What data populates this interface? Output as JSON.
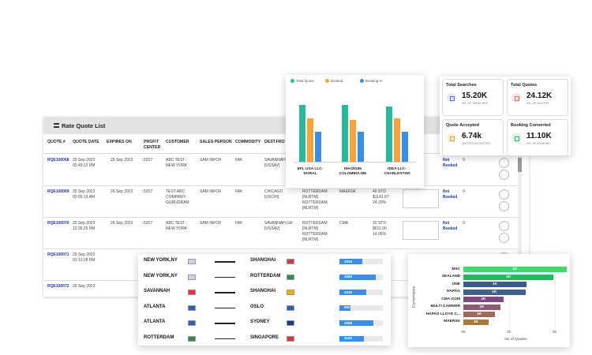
{
  "table": {
    "title": "Rate Quote List",
    "columns": [
      "QUOTE #",
      "QUOTE DATE",
      "EXPIRES ON",
      "PROFIT CENTER",
      "CUSTOMER",
      "SALES PERSON",
      "COMMODITY",
      "DEST.FRO"
    ],
    "rows": [
      {
        "quote": "RQE100068",
        "date": [
          "25 Sep 2023",
          "02:49:12 PM"
        ],
        "expires": "25 Sep 2023",
        "profit": "5207",
        "customer": [
          "ABC TEST-",
          "NEW YORK"
        ],
        "sales": "SAM INFOX",
        "commodity": "FAK",
        "dest": [
          "SAVANNAH,GA",
          "[USSAV]"
        ],
        "status": [
          "Not",
          "Booked"
        ],
        "count": "0"
      },
      {
        "quote": "RQE100069",
        "date": [
          "25 Sep 2023",
          "02:55:19 AM"
        ],
        "expires": "26 Sep 2023",
        "profit": "5207",
        "customer": [
          "TEST ABC",
          "COMPANY-",
          "GURUGRAM"
        ],
        "sales": "SAM INFOX",
        "commodity": "FAK",
        "dest": [
          "CHICAGO",
          "[USCHI]"
        ],
        "origin": [
          "ROTTERDAM",
          "[NLRTM]",
          "ROTTERDAM",
          "[NLRTM]"
        ],
        "carrier": "MAERSK",
        "rate": [
          "40 STD",
          "$1141.97",
          "24.20%"
        ],
        "status": [
          "Not",
          "Booked"
        ],
        "count": "0"
      },
      {
        "quote": "RQE100070",
        "date": [
          "25 Sep 2023",
          "12:36:25 PM"
        ],
        "expires": "26 Sep 2023",
        "profit": "5207",
        "customer": [
          "ABC TEST-",
          "NEW YORK"
        ],
        "sales": "SAM INFOX",
        "commodity": "FAK",
        "dest": [
          "SAVANNAH,GA",
          "[USSAV]"
        ],
        "origin": [
          "ROTTERDAM",
          "[NLRTM]",
          "ROTTERDAM",
          "[NLRTM]"
        ],
        "carrier": "CMA",
        "rate": [
          "20 STD",
          "$611.00",
          "14.06%"
        ],
        "status": [
          "Not",
          "Booked"
        ],
        "count": "0"
      },
      {
        "quote": "RQE100071",
        "date": [
          "25 Sep 2023",
          "01:13:28 PM"
        ]
      },
      {
        "quote": "RQE100072",
        "date": [
          "25 Sep 2023"
        ]
      }
    ]
  },
  "stats": [
    {
      "title": "Total Searches",
      "value": "15.20K",
      "subtitle": "NO. OF SEARCHES"
    },
    {
      "title": "Total Quotes",
      "value": "24.12K",
      "subtitle": "NO. OF QUOTES"
    },
    {
      "title": "Quote Accepted",
      "value": "6.74k",
      "subtitle": "QUOTES ACCEPTED"
    },
    {
      "title": "Booking Converted",
      "value": "11.10K",
      "subtitle": "NO. OF BOOKING"
    }
  ],
  "routes": {
    "xlim": [
      0,
      2000
    ],
    "rows": [
      {
        "from": "NEW YORK,NY",
        "to": "SHANGHAI",
        "value": 1054
      },
      {
        "from": "NEW YORK,NY",
        "to": "ROTTERDAM",
        "value": 1663
      },
      {
        "from": "SAVANNAH",
        "to": "SHANGHAI",
        "value": 1240
      },
      {
        "from": "ATLANTA",
        "to": "OSLO",
        "value": 500
      },
      {
        "from": "ATLANTA",
        "to": "SYDNEY",
        "value": 1560
      },
      {
        "from": "ROTTERDAM",
        "to": "SINGAPORE",
        "value": 1120
      }
    ]
  },
  "chart_data": [
    {
      "type": "bar",
      "categories": [
        "EFL USA LLC-DORAL",
        "MAGNUM COLOMBIA-ME",
        "IDEA LLC-CHARLESTON"
      ],
      "series": [
        {
          "name": "Total Quote",
          "color": "#2bb79b",
          "values": [
            72,
            72,
            70
          ]
        },
        {
          "name": "Booked",
          "color": "#f7a23b",
          "values": [
            55,
            53,
            55
          ]
        },
        {
          "name": "Booking %",
          "color": "#3b8ee8",
          "values": [
            38,
            38,
            38
          ]
        }
      ],
      "ylim": [
        0,
        80
      ]
    },
    {
      "type": "barh",
      "xlabel": "No of Quotes",
      "ylabel": "CarrierName",
      "categories": [
        "MSC",
        "SEALAND",
        "ONE",
        "HAPAG",
        "CMA-CGM",
        "MULTI CARRIER",
        "HAPAG LLOYD C...",
        "MAERSK"
      ],
      "values": [
        2260,
        1980,
        1380,
        1360,
        880,
        810,
        690,
        550
      ],
      "value_labels": [
        "2K",
        "2K",
        "1K",
        "1K",
        "1K",
        "1K",
        "1K",
        "1K"
      ],
      "colors": [
        "#3ddc6a",
        "#2bb55a",
        "#3b5a8c",
        "#3f5f8f",
        "#7b4a7e",
        "#8a5a6e",
        "#9e6a5e",
        "#a87a3a"
      ],
      "xlim": [
        0,
        2300
      ],
      "xticks": [
        {
          "value": 0,
          "label": "0K"
        },
        {
          "value": 1000,
          "label": "1K"
        },
        {
          "value": 2000,
          "label": "2K"
        }
      ]
    }
  ]
}
